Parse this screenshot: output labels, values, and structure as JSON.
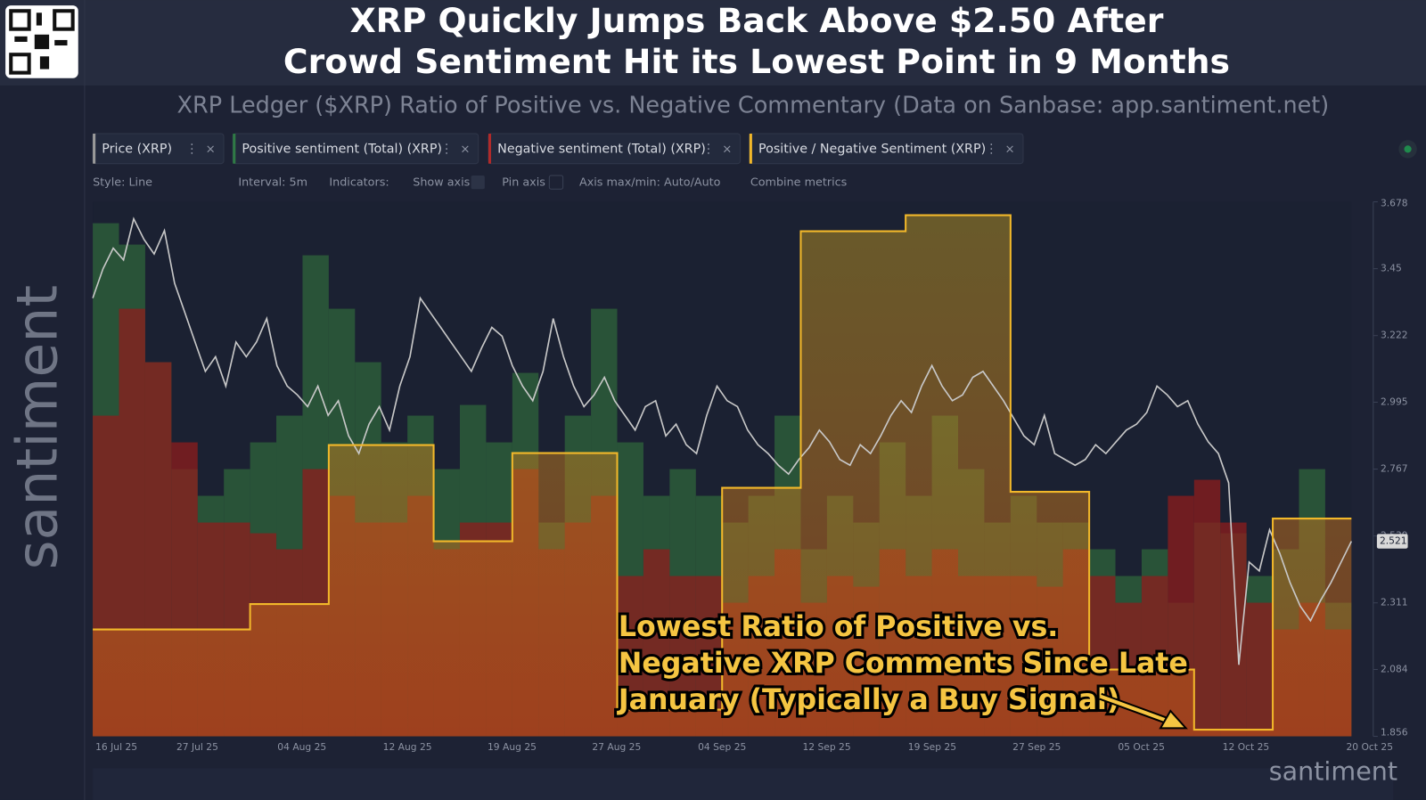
{
  "header": {
    "title_lines": [
      "XRP Quickly Jumps Back Above $2.50 After",
      "Crowd Sentiment Hit its Lowest Point in 9 Months"
    ],
    "subtitle": "XRP Ledger ($XRP) Ratio of Positive vs. Negative Commentary (Data on Sanbase: app.santiment.net)"
  },
  "toolbar": [
    "Style: Line",
    "Interval: 5m",
    "Indicators:",
    "Show axis",
    "Pin axis",
    "Axis max/min: Auto/Auto",
    "Combine metrics"
  ],
  "watermark": "santiment",
  "chart_data": {
    "type": "combo",
    "x_tick_labels": [
      "16 Jul 25",
      "27 Jul 25",
      "04 Aug 25",
      "12 Aug 25",
      "19 Aug 25",
      "27 Aug 25",
      "04 Sep 25",
      "12 Sep 25",
      "19 Sep 25",
      "27 Sep 25",
      "05 Oct 25",
      "12 Oct 25",
      "20 Oct 25"
    ],
    "ylim": [
      1.856,
      3.678
    ],
    "yticks": [
      1.856,
      2.084,
      2.311,
      2.539,
      2.767,
      2.995,
      3.222,
      3.45,
      3.678
    ],
    "y2lim": [
      0,
      4
    ],
    "y3lim": [
      0,
      100
    ],
    "series": [
      {
        "name": "Price (XRP)",
        "color": "#c8c8c8",
        "kind": "line",
        "values": [
          3.35,
          3.45,
          3.52,
          3.48,
          3.62,
          3.55,
          3.5,
          3.58,
          3.4,
          3.3,
          3.2,
          3.1,
          3.15,
          3.05,
          3.2,
          3.15,
          3.2,
          3.28,
          3.12,
          3.05,
          3.02,
          2.98,
          3.05,
          2.95,
          3.0,
          2.88,
          2.82,
          2.92,
          2.98,
          2.9,
          3.05,
          3.15,
          3.35,
          3.3,
          3.25,
          3.2,
          3.15,
          3.1,
          3.18,
          3.25,
          3.22,
          3.12,
          3.05,
          3.0,
          3.1,
          3.28,
          3.15,
          3.05,
          2.98,
          3.02,
          3.08,
          3.0,
          2.95,
          2.9,
          2.98,
          3.0,
          2.88,
          2.92,
          2.85,
          2.82,
          2.95,
          3.05,
          3.0,
          2.98,
          2.9,
          2.85,
          2.82,
          2.78,
          2.75,
          2.8,
          2.84,
          2.9,
          2.86,
          2.8,
          2.78,
          2.85,
          2.82,
          2.88,
          2.95,
          3.0,
          2.96,
          3.05,
          3.12,
          3.05,
          3.0,
          3.02,
          3.08,
          3.1,
          3.05,
          3.0,
          2.94,
          2.88,
          2.85,
          2.95,
          2.82,
          2.8,
          2.78,
          2.8,
          2.85,
          2.82,
          2.86,
          2.9,
          2.92,
          2.96,
          3.05,
          3.02,
          2.98,
          3.0,
          2.92,
          2.86,
          2.82,
          2.72,
          2.1,
          2.45,
          2.42,
          2.56,
          2.48,
          2.38,
          2.3,
          2.25,
          2.32,
          2.38,
          2.45,
          2.521
        ]
      },
      {
        "name": "Positive sentiment (Total) (XRP)",
        "color": "#2b5c3a",
        "kind": "bar",
        "axis": "y3",
        "values": [
          96,
          92,
          70,
          50,
          45,
          50,
          55,
          60,
          90,
          80,
          70,
          55,
          60,
          50,
          62,
          55,
          68,
          40,
          60,
          80,
          55,
          45,
          50,
          45,
          40,
          45,
          60,
          35,
          45,
          40,
          55,
          45,
          60,
          50,
          40,
          45,
          40,
          40,
          35,
          30,
          35,
          25,
          40,
          38,
          30,
          35,
          50,
          25
        ]
      },
      {
        "name": "Negative sentiment (Total) (XRP)",
        "color": "#8e1c1c",
        "kind": "bar",
        "axis": "y3",
        "values": [
          60,
          80,
          70,
          55,
          40,
          40,
          38,
          35,
          50,
          45,
          40,
          40,
          45,
          35,
          40,
          40,
          50,
          35,
          40,
          45,
          30,
          35,
          30,
          30,
          25,
          30,
          35,
          25,
          30,
          28,
          35,
          30,
          35,
          30,
          30,
          30,
          28,
          35,
          30,
          25,
          30,
          45,
          48,
          40,
          25,
          20,
          25,
          20
        ]
      },
      {
        "name": "Positive / Negative Sentiment (XRP)",
        "color": "#f2b82a",
        "kind": "step",
        "axis": "y2",
        "values": [
          0.8,
          0.8,
          0.8,
          0.8,
          0.8,
          0.8,
          0.99,
          0.99,
          0.99,
          2.18,
          2.18,
          2.18,
          2.18,
          1.46,
          1.46,
          1.46,
          2.12,
          2.12,
          2.12,
          2.12,
          0.2,
          0.2,
          0.2,
          0.2,
          1.86,
          1.86,
          1.86,
          3.78,
          3.78,
          3.78,
          3.78,
          3.9,
          3.9,
          3.9,
          3.9,
          1.83,
          1.83,
          1.83,
          0.5,
          0.5,
          0.5,
          0.5,
          0.05,
          0.05,
          0.05,
          1.63,
          1.63,
          1.63
        ]
      }
    ],
    "annotation": [
      "Lowest Ratio of Positive vs.",
      "Negative XRP Comments Since Late",
      "January (Typically a Buy Signal)"
    ]
  }
}
